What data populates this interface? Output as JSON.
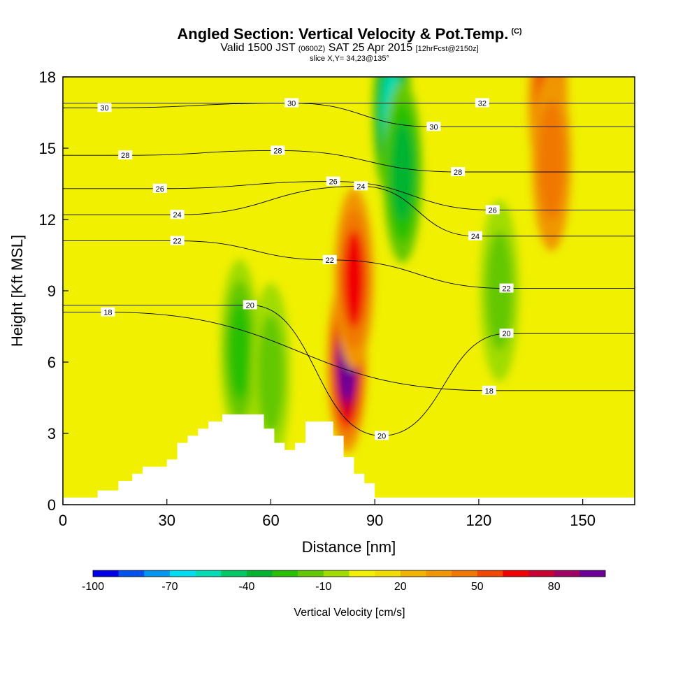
{
  "header": {
    "title": "Angled Section: Vertical Velocity & Pot.Temp.",
    "title_sup": "(C)",
    "valid_a": "Valid 1500 JST",
    "valid_b": "(0600Z)",
    "valid_c": "SAT 25 Apr 2015",
    "valid_d": "[12hrFcst@2150z]",
    "slice": "slice X,Y= 34,23@135°"
  },
  "chart_data": {
    "type": "heatmap",
    "xlabel": "Distance [nm]",
    "ylabel": "Height [Kft MSL]",
    "xlim": [
      0,
      165
    ],
    "ylim": [
      0,
      18
    ],
    "x_ticks": [
      0,
      30,
      60,
      90,
      120,
      150
    ],
    "y_ticks": [
      0,
      3,
      6,
      9,
      12,
      15,
      18
    ],
    "terrain_profile": [
      {
        "x": 0,
        "h": 0.3
      },
      {
        "x": 10,
        "h": 0.6
      },
      {
        "x": 16,
        "h": 1.0
      },
      {
        "x": 20,
        "h": 1.3
      },
      {
        "x": 23,
        "h": 1.6
      },
      {
        "x": 30,
        "h": 1.9
      },
      {
        "x": 33,
        "h": 2.6
      },
      {
        "x": 36,
        "h": 2.9
      },
      {
        "x": 39,
        "h": 3.2
      },
      {
        "x": 42,
        "h": 3.5
      },
      {
        "x": 46,
        "h": 3.8
      },
      {
        "x": 55,
        "h": 3.8
      },
      {
        "x": 58,
        "h": 3.2
      },
      {
        "x": 61,
        "h": 2.6
      },
      {
        "x": 64,
        "h": 2.3
      },
      {
        "x": 67,
        "h": 2.6
      },
      {
        "x": 70,
        "h": 3.5
      },
      {
        "x": 75,
        "h": 3.5
      },
      {
        "x": 78,
        "h": 2.9
      },
      {
        "x": 81,
        "h": 2.0
      },
      {
        "x": 84,
        "h": 1.3
      },
      {
        "x": 87,
        "h": 0.9
      },
      {
        "x": 90,
        "h": 0.3
      },
      {
        "x": 165,
        "h": 0.3
      }
    ],
    "vertical_velocity_features": [
      {
        "name": "downdraft core",
        "x": 95,
        "y": 16.5,
        "w_cms": -70
      },
      {
        "name": "downdraft",
        "x": 98,
        "y": 14.0,
        "w_cms": -50
      },
      {
        "name": "downdraft",
        "x": 51,
        "y": 6.5,
        "w_cms": -40
      },
      {
        "name": "downdraft",
        "x": 60,
        "y": 5.5,
        "w_cms": -30
      },
      {
        "name": "downdraft",
        "x": 126,
        "y": 9.0,
        "w_cms": -30
      },
      {
        "name": "updraft core",
        "x": 82,
        "y": 6.0,
        "w_cms": 80
      },
      {
        "name": "updraft",
        "x": 84,
        "y": 9.5,
        "w_cms": 50
      },
      {
        "name": "updraft",
        "x": 140,
        "y": 17.0,
        "w_cms": 50
      },
      {
        "name": "updraft",
        "x": 141,
        "y": 14.5,
        "w_cms": 30
      }
    ],
    "potential_temperature_labels": [
      {
        "value": "30",
        "x": 12,
        "y": 16.7
      },
      {
        "value": "30",
        "x": 66,
        "y": 16.9
      },
      {
        "value": "32",
        "x": 121,
        "y": 16.9
      },
      {
        "value": "30",
        "x": 107,
        "y": 15.9
      },
      {
        "value": "28",
        "x": 18,
        "y": 14.7
      },
      {
        "value": "28",
        "x": 62,
        "y": 14.9
      },
      {
        "value": "28",
        "x": 114,
        "y": 14.0
      },
      {
        "value": "26",
        "x": 28,
        "y": 13.3
      },
      {
        "value": "26",
        "x": 78,
        "y": 13.6
      },
      {
        "value": "26",
        "x": 124,
        "y": 12.4
      },
      {
        "value": "24",
        "x": 33,
        "y": 12.2
      },
      {
        "value": "24",
        "x": 86,
        "y": 13.4
      },
      {
        "value": "24",
        "x": 119,
        "y": 11.3
      },
      {
        "value": "22",
        "x": 33,
        "y": 11.1
      },
      {
        "value": "22",
        "x": 77,
        "y": 10.3
      },
      {
        "value": "22",
        "x": 128,
        "y": 9.1
      },
      {
        "value": "20",
        "x": 54,
        "y": 8.4
      },
      {
        "value": "20",
        "x": 128,
        "y": 7.2
      },
      {
        "value": "20",
        "x": 92,
        "y": 2.9
      },
      {
        "value": "18",
        "x": 13,
        "y": 8.1
      },
      {
        "value": "18",
        "x": 123,
        "y": 4.8
      }
    ],
    "colorbar": {
      "label": "Vertical Velocity [cm/s]",
      "tick_labels": [
        "-100",
        "-70",
        "-40",
        "-10",
        "20",
        "50",
        "80"
      ],
      "colors": [
        "#0000e6",
        "#0050f0",
        "#0096f0",
        "#00dcf0",
        "#00dcb4",
        "#00c864",
        "#00b432",
        "#28c000",
        "#64c800",
        "#a0dc00",
        "#f0f000",
        "#f0dc00",
        "#f0b400",
        "#f09600",
        "#f07800",
        "#f04600",
        "#f00000",
        "#c80032",
        "#a00064",
        "#6a0096"
      ]
    }
  }
}
